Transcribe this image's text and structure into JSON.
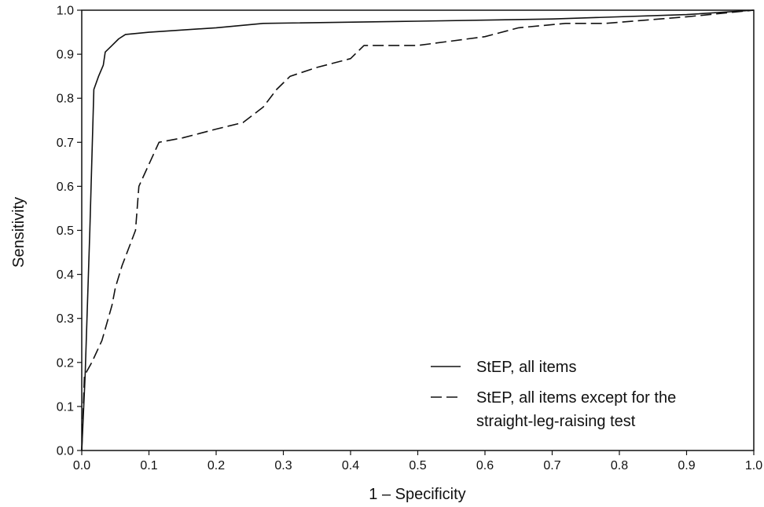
{
  "chart_data": {
    "type": "line",
    "title": "",
    "xlabel": "1 – Specificity",
    "ylabel": "Sensitivity",
    "xlim": [
      0,
      1
    ],
    "ylim": [
      0,
      1
    ],
    "xticks": [
      "0.0",
      "0.1",
      "0.2",
      "0.3",
      "0.4",
      "0.5",
      "0.6",
      "0.7",
      "0.8",
      "0.9",
      "1.0"
    ],
    "yticks": [
      "0.0",
      "0.1",
      "0.2",
      "0.3",
      "0.4",
      "0.5",
      "0.6",
      "0.7",
      "0.8",
      "0.9",
      "1.0"
    ],
    "grid": false,
    "legend_position": "bottom-right",
    "series": [
      {
        "name": "StEP, all items",
        "style": "solid",
        "color": "#111111",
        "points": [
          [
            0.0,
            0.0
          ],
          [
            0.005,
            0.17
          ],
          [
            0.012,
            0.5
          ],
          [
            0.018,
            0.82
          ],
          [
            0.025,
            0.85
          ],
          [
            0.032,
            0.875
          ],
          [
            0.035,
            0.905
          ],
          [
            0.045,
            0.92
          ],
          [
            0.055,
            0.935
          ],
          [
            0.065,
            0.945
          ],
          [
            0.1,
            0.95
          ],
          [
            0.2,
            0.96
          ],
          [
            0.27,
            0.97
          ],
          [
            0.5,
            0.975
          ],
          [
            0.7,
            0.98
          ],
          [
            0.9,
            0.99
          ],
          [
            1.0,
            1.0
          ]
        ]
      },
      {
        "name": "StEP, all items except for the straight-leg-raising test",
        "style": "dashed",
        "color": "#111111",
        "points": [
          [
            0.0,
            0.0
          ],
          [
            0.004,
            0.17
          ],
          [
            0.015,
            0.2
          ],
          [
            0.03,
            0.25
          ],
          [
            0.045,
            0.33
          ],
          [
            0.05,
            0.37
          ],
          [
            0.06,
            0.42
          ],
          [
            0.07,
            0.46
          ],
          [
            0.08,
            0.5
          ],
          [
            0.085,
            0.6
          ],
          [
            0.1,
            0.65
          ],
          [
            0.115,
            0.7
          ],
          [
            0.15,
            0.71
          ],
          [
            0.2,
            0.73
          ],
          [
            0.24,
            0.745
          ],
          [
            0.27,
            0.78
          ],
          [
            0.29,
            0.82
          ],
          [
            0.31,
            0.85
          ],
          [
            0.35,
            0.87
          ],
          [
            0.4,
            0.89
          ],
          [
            0.42,
            0.92
          ],
          [
            0.5,
            0.92
          ],
          [
            0.6,
            0.94
          ],
          [
            0.65,
            0.96
          ],
          [
            0.72,
            0.97
          ],
          [
            0.78,
            0.97
          ],
          [
            0.9,
            0.985
          ],
          [
            1.0,
            1.0
          ]
        ]
      }
    ]
  },
  "legend": {
    "entries": [
      {
        "line1": "StEP, all items",
        "line2": ""
      },
      {
        "line1": "StEP, all items except for the",
        "line2": "straight-leg-raising test"
      }
    ]
  }
}
